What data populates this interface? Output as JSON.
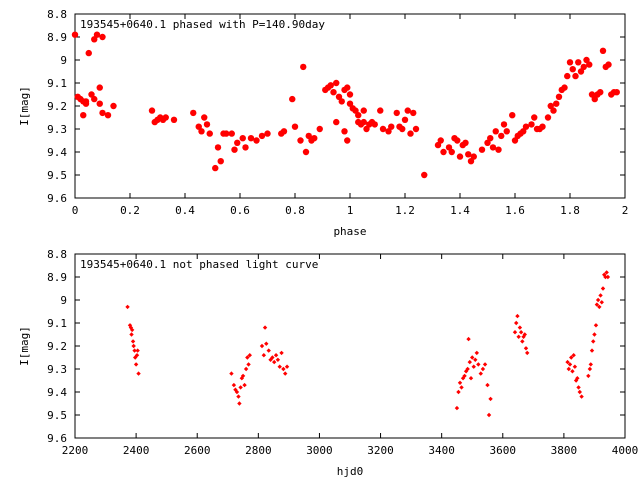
{
  "chart_data": [
    {
      "type": "scatter",
      "title": "193545+0640.1 phased with P=140.90day",
      "xlabel": "phase",
      "ylabel": "I[mag]",
      "xlim": [
        0,
        2
      ],
      "ylim": [
        8.8,
        9.6
      ],
      "y_inverted": true,
      "xticks": [
        "0",
        "0.2",
        "0.4",
        "0.6",
        "0.8",
        "1",
        "1.2",
        "1.4",
        "1.6",
        "1.8",
        "2"
      ],
      "yticks": [
        "8.8",
        "8.9",
        "9",
        "9.1",
        "9.2",
        "9.3",
        "9.4",
        "9.5",
        "9.6"
      ],
      "marker": "filled-circle-large",
      "color": "#ff0000",
      "points": [
        [
          0.0,
          8.89
        ],
        [
          0.01,
          9.16
        ],
        [
          0.02,
          9.17
        ],
        [
          0.03,
          9.24
        ],
        [
          0.04,
          9.19
        ],
        [
          0.03,
          9.18
        ],
        [
          0.04,
          9.18
        ],
        [
          0.05,
          8.97
        ],
        [
          0.06,
          9.15
        ],
        [
          0.07,
          8.91
        ],
        [
          0.07,
          9.17
        ],
        [
          0.08,
          8.89
        ],
        [
          0.09,
          9.19
        ],
        [
          0.1,
          8.9
        ],
        [
          0.09,
          9.12
        ],
        [
          0.1,
          9.23
        ],
        [
          0.12,
          9.24
        ],
        [
          0.14,
          9.2
        ],
        [
          0.28,
          9.22
        ],
        [
          0.29,
          9.27
        ],
        [
          0.3,
          9.26
        ],
        [
          0.31,
          9.25
        ],
        [
          0.32,
          9.26
        ],
        [
          0.33,
          9.25
        ],
        [
          0.36,
          9.26
        ],
        [
          0.43,
          9.23
        ],
        [
          0.45,
          9.29
        ],
        [
          0.46,
          9.31
        ],
        [
          0.47,
          9.25
        ],
        [
          0.48,
          9.28
        ],
        [
          0.49,
          9.32
        ],
        [
          0.51,
          9.47
        ],
        [
          0.52,
          9.38
        ],
        [
          0.53,
          9.44
        ],
        [
          0.54,
          9.32
        ],
        [
          0.55,
          9.32
        ],
        [
          0.57,
          9.32
        ],
        [
          0.58,
          9.39
        ],
        [
          0.59,
          9.36
        ],
        [
          0.61,
          9.34
        ],
        [
          0.62,
          9.38
        ],
        [
          0.64,
          9.34
        ],
        [
          0.66,
          9.35
        ],
        [
          0.68,
          9.33
        ],
        [
          0.7,
          9.32
        ],
        [
          0.75,
          9.32
        ],
        [
          0.76,
          9.31
        ],
        [
          0.79,
          9.17
        ],
        [
          0.8,
          9.29
        ],
        [
          0.82,
          9.35
        ],
        [
          0.83,
          9.03
        ],
        [
          0.84,
          9.4
        ],
        [
          0.85,
          9.33
        ],
        [
          0.86,
          9.35
        ],
        [
          0.87,
          9.34
        ],
        [
          0.89,
          9.3
        ],
        [
          0.91,
          9.13
        ],
        [
          0.92,
          9.12
        ],
        [
          0.93,
          9.11
        ],
        [
          0.94,
          9.14
        ],
        [
          0.95,
          9.27
        ],
        [
          0.95,
          9.1
        ],
        [
          0.96,
          9.16
        ],
        [
          0.97,
          9.18
        ],
        [
          0.98,
          9.31
        ],
        [
          0.99,
          9.35
        ],
        [
          0.98,
          9.13
        ],
        [
          0.99,
          9.12
        ],
        [
          1.0,
          9.15
        ],
        [
          1.0,
          9.19
        ],
        [
          1.01,
          9.21
        ],
        [
          1.02,
          9.22
        ],
        [
          1.03,
          9.27
        ],
        [
          1.03,
          9.24
        ],
        [
          1.04,
          9.28
        ],
        [
          1.05,
          9.22
        ],
        [
          1.05,
          9.27
        ],
        [
          1.06,
          9.3
        ],
        [
          1.07,
          9.28
        ],
        [
          1.08,
          9.27
        ],
        [
          1.09,
          9.28
        ],
        [
          1.11,
          9.22
        ],
        [
          1.12,
          9.3
        ],
        [
          1.14,
          9.31
        ],
        [
          1.15,
          9.29
        ],
        [
          1.17,
          9.23
        ],
        [
          1.18,
          9.29
        ],
        [
          1.19,
          9.3
        ],
        [
          1.2,
          9.26
        ],
        [
          1.21,
          9.22
        ],
        [
          1.22,
          9.32
        ],
        [
          1.23,
          9.23
        ],
        [
          1.24,
          9.3
        ],
        [
          1.27,
          9.5
        ],
        [
          1.32,
          9.37
        ],
        [
          1.33,
          9.35
        ],
        [
          1.34,
          9.4
        ],
        [
          1.36,
          9.38
        ],
        [
          1.37,
          9.4
        ],
        [
          1.38,
          9.34
        ],
        [
          1.39,
          9.35
        ],
        [
          1.4,
          9.42
        ],
        [
          1.41,
          9.37
        ],
        [
          1.42,
          9.36
        ],
        [
          1.43,
          9.41
        ],
        [
          1.44,
          9.44
        ],
        [
          1.45,
          9.42
        ],
        [
          1.48,
          9.39
        ],
        [
          1.5,
          9.36
        ],
        [
          1.51,
          9.34
        ],
        [
          1.52,
          9.38
        ],
        [
          1.53,
          9.31
        ],
        [
          1.54,
          9.39
        ],
        [
          1.55,
          9.33
        ],
        [
          1.56,
          9.28
        ],
        [
          1.57,
          9.31
        ],
        [
          1.59,
          9.24
        ],
        [
          1.6,
          9.35
        ],
        [
          1.61,
          9.33
        ],
        [
          1.62,
          9.32
        ],
        [
          1.63,
          9.31
        ],
        [
          1.64,
          9.29
        ],
        [
          1.66,
          9.28
        ],
        [
          1.67,
          9.25
        ],
        [
          1.68,
          9.3
        ],
        [
          1.69,
          9.3
        ],
        [
          1.7,
          9.29
        ],
        [
          1.72,
          9.25
        ],
        [
          1.73,
          9.2
        ],
        [
          1.74,
          9.22
        ],
        [
          1.75,
          9.19
        ],
        [
          1.76,
          9.16
        ],
        [
          1.77,
          9.13
        ],
        [
          1.78,
          9.12
        ],
        [
          1.79,
          9.07
        ],
        [
          1.8,
          9.01
        ],
        [
          1.81,
          9.04
        ],
        [
          1.82,
          9.07
        ],
        [
          1.83,
          9.01
        ],
        [
          1.84,
          9.05
        ],
        [
          1.85,
          9.03
        ],
        [
          1.86,
          9.0
        ],
        [
          1.87,
          9.02
        ],
        [
          1.88,
          9.15
        ],
        [
          1.89,
          9.17
        ],
        [
          1.9,
          9.15
        ],
        [
          1.91,
          9.14
        ],
        [
          1.92,
          8.96
        ],
        [
          1.93,
          9.03
        ],
        [
          1.94,
          9.02
        ],
        [
          1.95,
          9.15
        ],
        [
          1.96,
          9.14
        ],
        [
          1.97,
          9.14
        ]
      ]
    },
    {
      "type": "scatter",
      "title": "193545+0640.1 not phased light curve",
      "xlabel": "hjd0",
      "ylabel": "I[mag]",
      "xlim": [
        2200,
        4000
      ],
      "ylim": [
        8.8,
        9.6
      ],
      "y_inverted": true,
      "xticks": [
        "2200",
        "2400",
        "2600",
        "2800",
        "3000",
        "3200",
        "3400",
        "3600",
        "3800",
        "4000"
      ],
      "yticks": [
        "8.8",
        "8.9",
        "9",
        "9.1",
        "9.2",
        "9.3",
        "9.4",
        "9.5",
        "9.6"
      ],
      "marker": "small-diamond",
      "color": "#ff0000",
      "points": [
        [
          2372,
          9.03
        ],
        [
          2380,
          9.11
        ],
        [
          2383,
          9.12
        ],
        [
          2385,
          9.15
        ],
        [
          2387,
          9.13
        ],
        [
          2390,
          9.18
        ],
        [
          2392,
          9.2
        ],
        [
          2395,
          9.22
        ],
        [
          2397,
          9.25
        ],
        [
          2400,
          9.28
        ],
        [
          2403,
          9.24
        ],
        [
          2405,
          9.22
        ],
        [
          2408,
          9.32
        ],
        [
          2712,
          9.32
        ],
        [
          2720,
          9.37
        ],
        [
          2725,
          9.39
        ],
        [
          2730,
          9.4
        ],
        [
          2735,
          9.42
        ],
        [
          2738,
          9.45
        ],
        [
          2742,
          9.38
        ],
        [
          2746,
          9.34
        ],
        [
          2750,
          9.33
        ],
        [
          2755,
          9.37
        ],
        [
          2760,
          9.3
        ],
        [
          2764,
          9.25
        ],
        [
          2768,
          9.28
        ],
        [
          2772,
          9.24
        ],
        [
          2812,
          9.2
        ],
        [
          2818,
          9.24
        ],
        [
          2822,
          9.12
        ],
        [
          2826,
          9.19
        ],
        [
          2834,
          9.22
        ],
        [
          2840,
          9.26
        ],
        [
          2846,
          9.25
        ],
        [
          2852,
          9.27
        ],
        [
          2858,
          9.24
        ],
        [
          2864,
          9.26
        ],
        [
          2870,
          9.29
        ],
        [
          2876,
          9.23
        ],
        [
          2882,
          9.3
        ],
        [
          2888,
          9.32
        ],
        [
          2894,
          9.29
        ],
        [
          3450,
          9.47
        ],
        [
          3455,
          9.4
        ],
        [
          3460,
          9.36
        ],
        [
          3465,
          9.38
        ],
        [
          3470,
          9.34
        ],
        [
          3475,
          9.33
        ],
        [
          3480,
          9.31
        ],
        [
          3485,
          9.3
        ],
        [
          3488,
          9.17
        ],
        [
          3492,
          9.27
        ],
        [
          3496,
          9.34
        ],
        [
          3500,
          9.25
        ],
        [
          3505,
          9.29
        ],
        [
          3510,
          9.26
        ],
        [
          3515,
          9.23
        ],
        [
          3520,
          9.28
        ],
        [
          3528,
          9.32
        ],
        [
          3535,
          9.3
        ],
        [
          3542,
          9.28
        ],
        [
          3550,
          9.37
        ],
        [
          3555,
          9.5
        ],
        [
          3560,
          9.43
        ],
        [
          3640,
          9.14
        ],
        [
          3644,
          9.1
        ],
        [
          3648,
          9.07
        ],
        [
          3652,
          9.16
        ],
        [
          3656,
          9.12
        ],
        [
          3660,
          9.14
        ],
        [
          3664,
          9.18
        ],
        [
          3668,
          9.16
        ],
        [
          3672,
          9.15
        ],
        [
          3676,
          9.21
        ],
        [
          3680,
          9.23
        ],
        [
          3812,
          9.27
        ],
        [
          3816,
          9.3
        ],
        [
          3820,
          9.28
        ],
        [
          3824,
          9.25
        ],
        [
          3828,
          9.31
        ],
        [
          3832,
          9.24
        ],
        [
          3836,
          9.29
        ],
        [
          3840,
          9.35
        ],
        [
          3844,
          9.34
        ],
        [
          3848,
          9.38
        ],
        [
          3852,
          9.4
        ],
        [
          3858,
          9.42
        ],
        [
          3880,
          9.33
        ],
        [
          3885,
          9.3
        ],
        [
          3888,
          9.28
        ],
        [
          3892,
          9.22
        ],
        [
          3896,
          9.18
        ],
        [
          3900,
          9.15
        ],
        [
          3905,
          9.11
        ],
        [
          3908,
          9.02
        ],
        [
          3912,
          9.0
        ],
        [
          3916,
          9.03
        ],
        [
          3920,
          8.98
        ],
        [
          3924,
          9.01
        ],
        [
          3928,
          8.95
        ],
        [
          3932,
          8.89
        ],
        [
          3936,
          8.9
        ],
        [
          3940,
          8.88
        ],
        [
          3944,
          8.9
        ]
      ]
    }
  ]
}
